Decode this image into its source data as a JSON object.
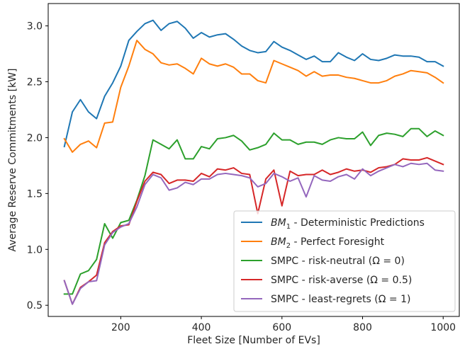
{
  "chart_data": {
    "type": "line",
    "xlabel": "Fleet Size [Number of EVs]",
    "ylabel": "Average Reserve Commitments [kW]",
    "xlim": [
      20,
      1040
    ],
    "ylim": [
      0.4,
      3.2
    ],
    "xticks": [
      200,
      400,
      600,
      800,
      1000
    ],
    "yticks": [
      0.5,
      1.0,
      1.5,
      2.0,
      2.5,
      3.0
    ],
    "xtick_labels": [
      "200",
      "400",
      "600",
      "800",
      "1000"
    ],
    "ytick_labels": [
      "0.5",
      "1.0",
      "1.5",
      "2.0",
      "2.5",
      "3.0"
    ],
    "grid": false,
    "legend_position": "lower-right",
    "x": [
      60,
      80,
      100,
      120,
      140,
      160,
      180,
      200,
      220,
      240,
      260,
      280,
      300,
      320,
      340,
      360,
      380,
      400,
      420,
      440,
      460,
      480,
      500,
      520,
      540,
      560,
      580,
      600,
      620,
      640,
      660,
      680,
      700,
      720,
      740,
      760,
      780,
      800,
      820,
      840,
      860,
      880,
      900,
      920,
      940,
      960,
      980,
      1000
    ],
    "series": [
      {
        "name_prefix": "BM",
        "name_sub": "1",
        "name_suffix": " - Deterministic Predictions",
        "color": "#1f77b4",
        "values": [
          1.92,
          2.23,
          2.34,
          2.23,
          2.17,
          2.37,
          2.49,
          2.64,
          2.87,
          2.95,
          3.02,
          3.05,
          2.96,
          3.02,
          3.04,
          2.98,
          2.89,
          2.94,
          2.9,
          2.92,
          2.93,
          2.88,
          2.82,
          2.78,
          2.76,
          2.77,
          2.86,
          2.81,
          2.78,
          2.74,
          2.7,
          2.73,
          2.68,
          2.68,
          2.76,
          2.72,
          2.69,
          2.75,
          2.7,
          2.69,
          2.71,
          2.74,
          2.73,
          2.73,
          2.72,
          2.68,
          2.68,
          2.64
        ]
      },
      {
        "name_prefix": "BM",
        "name_sub": "2",
        "name_suffix": " - Perfect Foresight",
        "color": "#ff7f0e",
        "values": [
          1.99,
          1.87,
          1.94,
          1.97,
          1.91,
          2.13,
          2.14,
          2.45,
          2.64,
          2.87,
          2.79,
          2.75,
          2.67,
          2.65,
          2.66,
          2.62,
          2.57,
          2.71,
          2.66,
          2.64,
          2.66,
          2.63,
          2.57,
          2.57,
          2.51,
          2.49,
          2.69,
          2.66,
          2.63,
          2.6,
          2.55,
          2.59,
          2.55,
          2.56,
          2.56,
          2.54,
          2.53,
          2.51,
          2.49,
          2.49,
          2.51,
          2.55,
          2.57,
          2.6,
          2.59,
          2.58,
          2.54,
          2.49
        ]
      },
      {
        "name": "SMPC - risk-neutral (Ω = 0)",
        "color": "#2ca02c",
        "values": [
          0.6,
          0.6,
          0.78,
          0.81,
          0.91,
          1.23,
          1.1,
          1.24,
          1.26,
          1.44,
          1.66,
          1.98,
          1.94,
          1.9,
          1.98,
          1.81,
          1.81,
          1.92,
          1.9,
          1.99,
          2.0,
          2.02,
          1.97,
          1.89,
          1.91,
          1.94,
          2.04,
          1.98,
          1.98,
          1.94,
          1.96,
          1.96,
          1.94,
          1.98,
          2.0,
          1.99,
          1.99,
          2.05,
          1.93,
          2.02,
          2.04,
          2.03,
          2.01,
          2.08,
          2.08,
          2.01,
          2.06,
          2.02
        ]
      },
      {
        "name": "SMPC - risk-averse (Ω = 0.5)",
        "color": "#d62728",
        "values": [
          0.72,
          0.51,
          0.66,
          0.71,
          0.77,
          1.06,
          1.16,
          1.21,
          1.22,
          1.43,
          1.61,
          1.69,
          1.67,
          1.59,
          1.62,
          1.62,
          1.61,
          1.68,
          1.65,
          1.72,
          1.71,
          1.73,
          1.68,
          1.67,
          1.32,
          1.63,
          1.71,
          1.39,
          1.7,
          1.66,
          1.67,
          1.67,
          1.71,
          1.67,
          1.69,
          1.72,
          1.7,
          1.71,
          1.69,
          1.73,
          1.74,
          1.76,
          1.81,
          1.8,
          1.8,
          1.82,
          1.79,
          1.76
        ]
      },
      {
        "name": "SMPC - least-regrets (Ω = 1)",
        "color": "#9467bd",
        "values": [
          0.72,
          0.51,
          0.65,
          0.71,
          0.72,
          1.04,
          1.15,
          1.2,
          1.23,
          1.38,
          1.58,
          1.67,
          1.64,
          1.53,
          1.55,
          1.6,
          1.58,
          1.63,
          1.63,
          1.67,
          1.68,
          1.67,
          1.66,
          1.64,
          1.56,
          1.59,
          1.68,
          1.65,
          1.61,
          1.64,
          1.47,
          1.66,
          1.62,
          1.61,
          1.65,
          1.67,
          1.63,
          1.72,
          1.66,
          1.7,
          1.73,
          1.76,
          1.74,
          1.77,
          1.76,
          1.77,
          1.71,
          1.7
        ]
      }
    ]
  }
}
